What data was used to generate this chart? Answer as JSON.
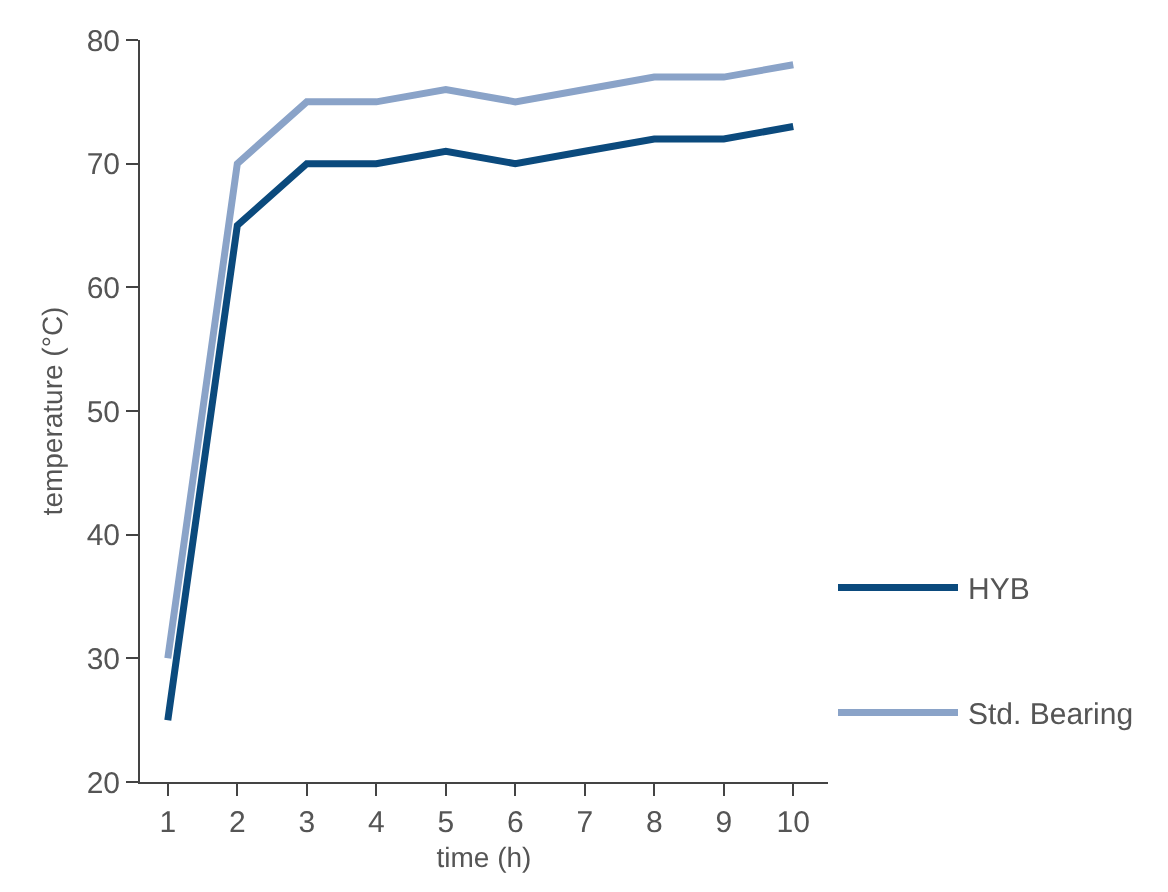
{
  "chart_data": {
    "type": "line",
    "xlabel": "time (h)",
    "ylabel": "temperature (°C)",
    "x": [
      1,
      2,
      3,
      4,
      5,
      6,
      7,
      8,
      9,
      10
    ],
    "series": [
      {
        "name": "HYB",
        "color": "#0b4a7d",
        "values": [
          25,
          65,
          70,
          70,
          71,
          70,
          71,
          72,
          72,
          73
        ]
      },
      {
        "name": "Std. Bearing",
        "color": "#8aa3c8",
        "values": [
          30,
          70,
          75,
          75,
          76,
          75,
          76,
          77,
          77,
          78
        ]
      }
    ],
    "xlim": [
      0.6,
      10.5
    ],
    "xticks": [
      1,
      2,
      3,
      4,
      5,
      6,
      7,
      8,
      9,
      10
    ],
    "ylim": [
      20,
      80
    ],
    "yticks": [
      20,
      30,
      40,
      50,
      60,
      70,
      80
    ],
    "legend": "bottom right",
    "marker": "none",
    "line_style": "solid"
  }
}
